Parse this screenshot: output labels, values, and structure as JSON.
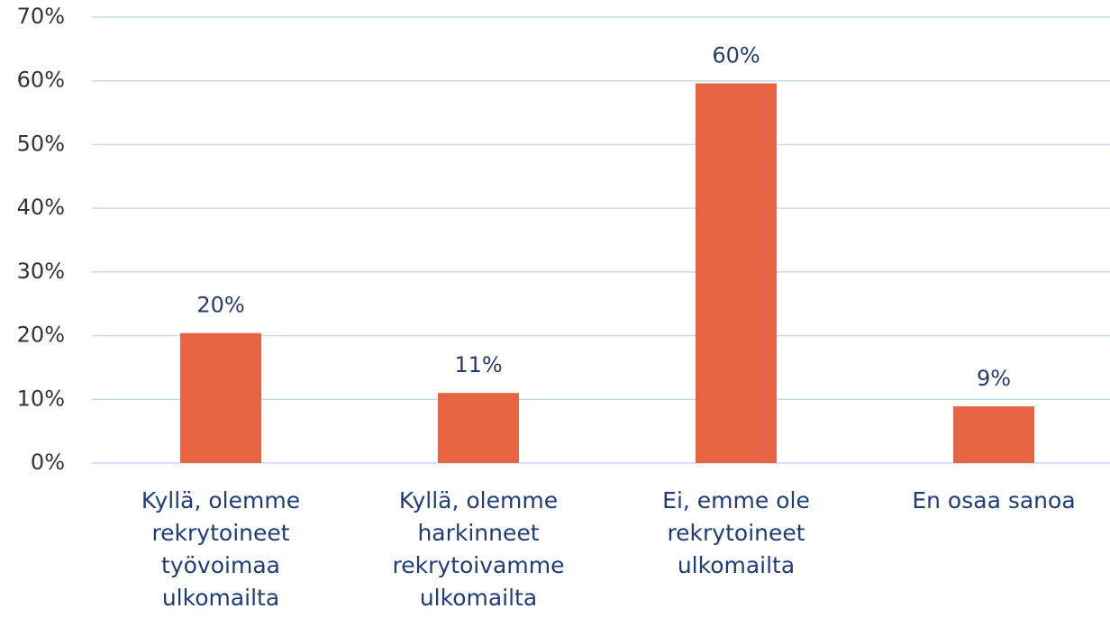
{
  "chart_data": {
    "type": "bar",
    "categories": [
      "Kyllä, olemme rekrytoineet työvoimaa ulkomailta",
      "Kyllä, olemme harkinneet rekrytoivamme ulkomailta",
      "Ei, emme ole rekrytoineet ulkomailta",
      "En osaa sanoa"
    ],
    "values": [
      20.4,
      11,
      59.6,
      8.9
    ],
    "value_labels": [
      "20%",
      "11%",
      "60%",
      "9%"
    ],
    "color": "#e66441",
    "ylim": [
      0,
      70
    ],
    "yticks": [
      {
        "value": 0,
        "label": "0%"
      },
      {
        "value": 10,
        "label": "10%"
      },
      {
        "value": 20,
        "label": "20%"
      },
      {
        "value": 30,
        "label": "30%"
      },
      {
        "value": 40,
        "label": "40%"
      },
      {
        "value": 50,
        "label": "50%"
      },
      {
        "value": 60,
        "label": "60%"
      },
      {
        "value": 70,
        "label": "70%"
      }
    ],
    "grid": true
  }
}
